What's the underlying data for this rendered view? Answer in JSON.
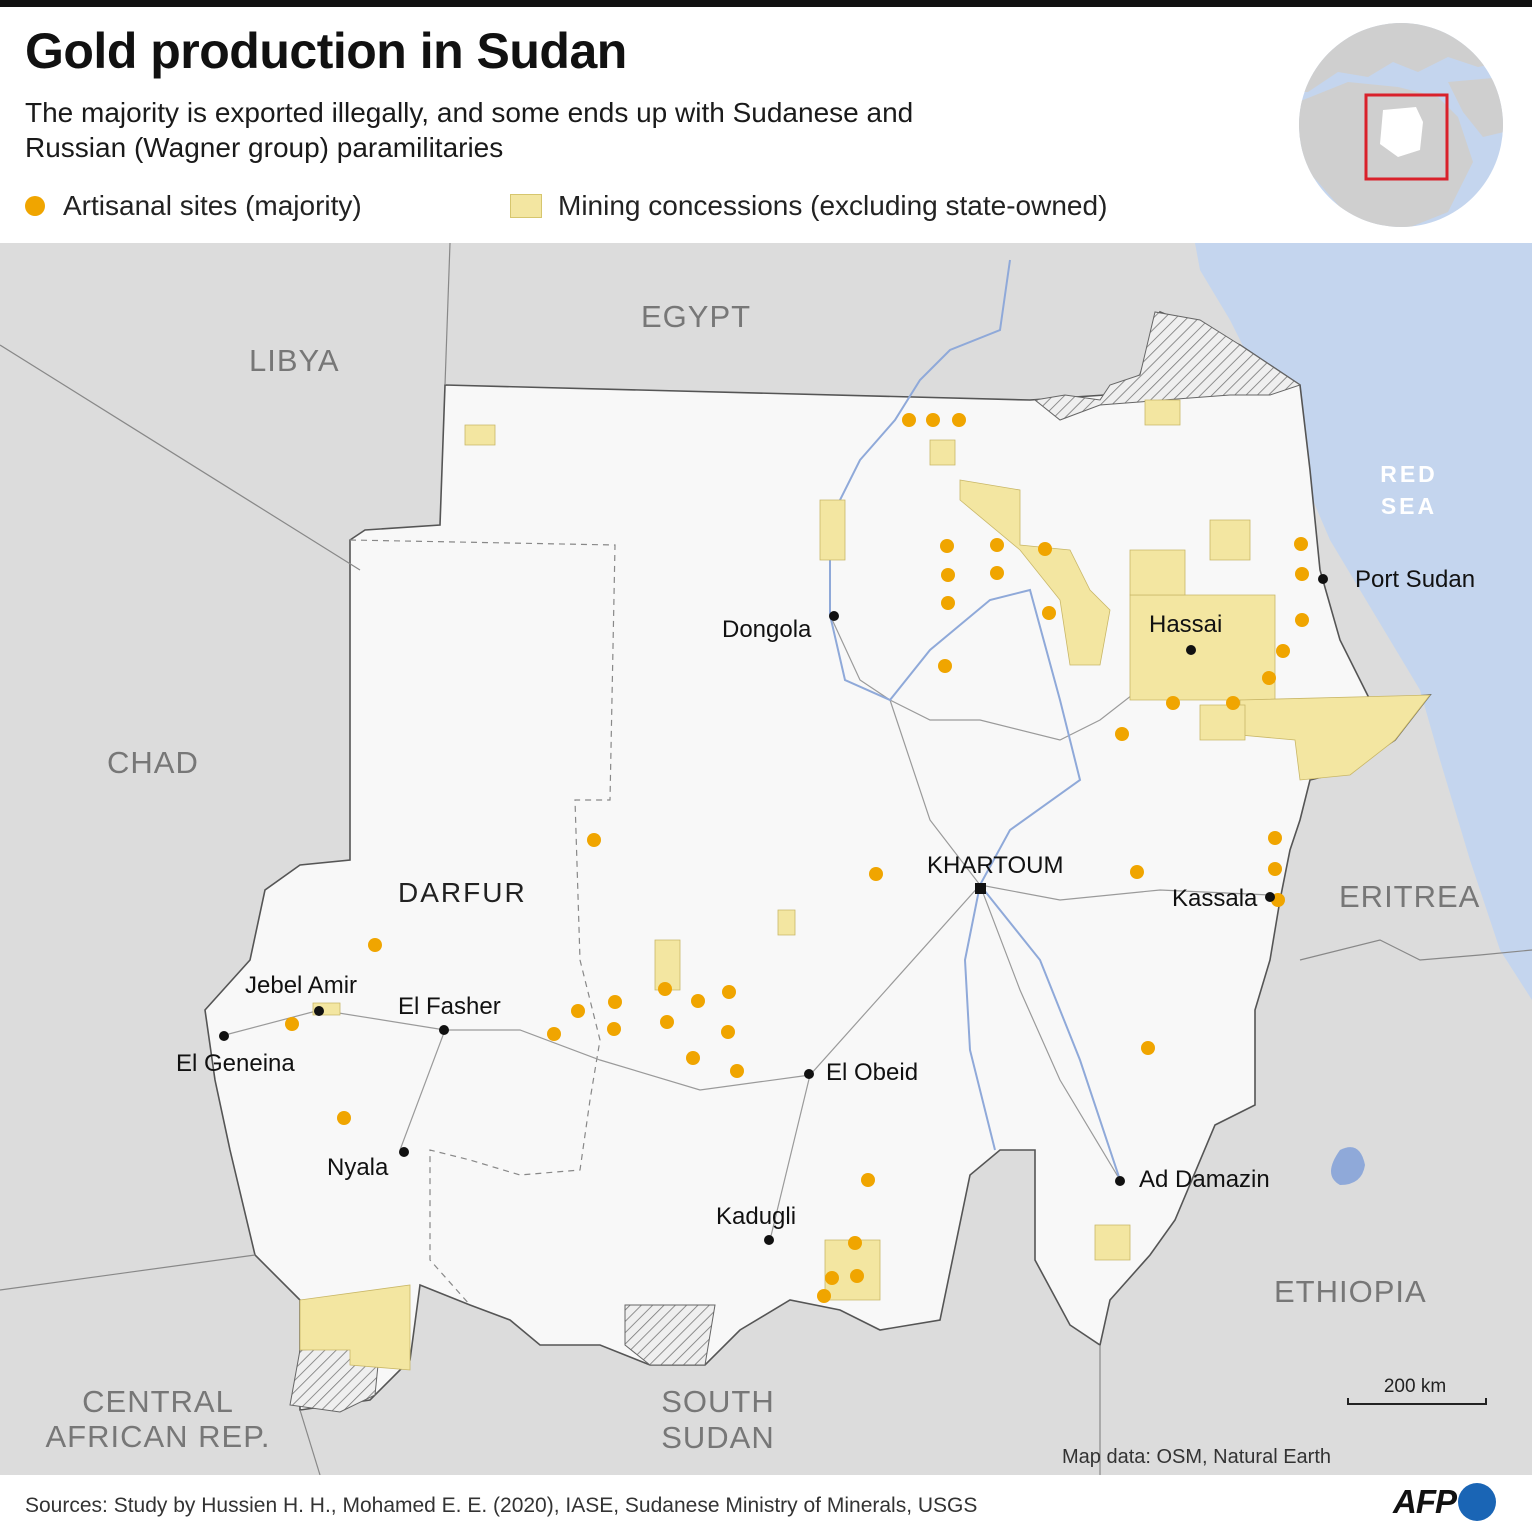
{
  "title": "Gold production in Sudan",
  "subtitle": "The majority is exported illegally, and some ends up with Sudanese and Russian (Wagner group) paramilitaries",
  "legend": {
    "artisanal": "Artisanal sites (majority)",
    "concessions": "Mining concessions (excluding state-owned)"
  },
  "colors": {
    "artisanal": "#f0a500",
    "concession_fill": "#f3e6a1",
    "sudan_fill": "#f8f8f8",
    "neighbor_fill": "#dcdcdc",
    "water": "#c4d5ee",
    "rivers": "#8fa9d9",
    "locator_frame": "#d9212b",
    "afp_blue": "#1a65b5"
  },
  "countries": {
    "libya": "LIBYA",
    "egypt": "EGYPT",
    "chad": "CHAD",
    "car_line1": "CENTRAL",
    "car_line2": "AFRICAN REP.",
    "south_sudan_line1": "SOUTH",
    "south_sudan_line2": "SUDAN",
    "eritrea": "ERITREA",
    "ethiopia": "ETHIOPIA"
  },
  "sea": {
    "line1": "RED",
    "line2": "SEA"
  },
  "region": "DARFUR",
  "cities": {
    "khartoum": "KHARTOUM",
    "port_sudan": "Port Sudan",
    "dongola": "Dongola",
    "hassai": "Hassai",
    "kassala": "Kassala",
    "el_obeid": "El Obeid",
    "ad_damazin": "Ad Damazin",
    "kadugli": "Kadugli",
    "el_fasher": "El Fasher",
    "jebel_amir": "Jebel Amir",
    "el_geneina": "El Geneina",
    "nyala": "Nyala"
  },
  "scale": "200 km",
  "map_credit": "Map data: OSM, Natural Earth",
  "sources": "Sources: Study by Hussien H. H., Mohamed E. E. (2020), IASE, Sudanese Ministry of Minerals, USGS",
  "brand": "AFP"
}
